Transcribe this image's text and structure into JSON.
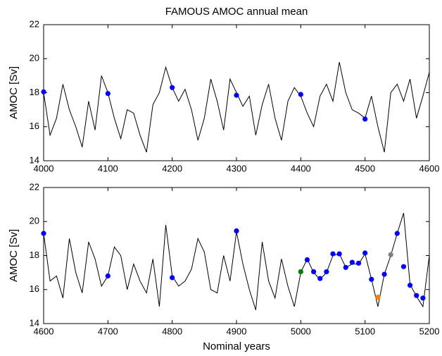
{
  "chart_data": [
    {
      "type": "line",
      "title": "FAMOUS AMOC annual mean",
      "ylabel": "AMOC [Sv]",
      "x": [
        4000,
        4010,
        4020,
        4030,
        4040,
        4050,
        4060,
        4070,
        4080,
        4090,
        4100,
        4110,
        4120,
        4130,
        4140,
        4150,
        4160,
        4170,
        4180,
        4190,
        4200,
        4210,
        4220,
        4230,
        4240,
        4250,
        4260,
        4270,
        4280,
        4290,
        4300,
        4310,
        4320,
        4330,
        4340,
        4350,
        4360,
        4370,
        4380,
        4390,
        4400,
        4410,
        4420,
        4430,
        4440,
        4450,
        4460,
        4470,
        4480,
        4490,
        4500,
        4510,
        4520,
        4530,
        4540,
        4550,
        4560,
        4570,
        4580,
        4590,
        4600
      ],
      "values": [
        18.0,
        15.5,
        16.5,
        18.5,
        17.0,
        16.0,
        14.8,
        17.5,
        15.8,
        19.0,
        18.0,
        16.5,
        15.3,
        17.0,
        16.8,
        15.5,
        14.5,
        17.3,
        18.0,
        19.5,
        18.3,
        17.5,
        18.2,
        17.0,
        15.2,
        16.5,
        18.8,
        17.5,
        15.8,
        18.8,
        18.0,
        17.2,
        17.8,
        15.5,
        17.3,
        18.5,
        16.5,
        15.2,
        17.5,
        18.3,
        17.8,
        16.8,
        16.0,
        17.8,
        18.5,
        17.5,
        19.8,
        18.0,
        17.0,
        16.8,
        16.5,
        17.8,
        16.0,
        14.5,
        18.0,
        18.5,
        17.5,
        18.8,
        16.5,
        17.8,
        19.2
      ],
      "color": "#000000",
      "points": {
        "x": [
          4000,
          4100,
          4200,
          4300,
          4400,
          4500
        ],
        "values": [
          18.05,
          17.95,
          18.3,
          17.85,
          17.9,
          16.45
        ],
        "colors": [
          "#0000ff",
          "#0000ff",
          "#0000ff",
          "#0000ff",
          "#0000ff",
          "#0000ff"
        ]
      },
      "xlim": [
        4000,
        4600
      ],
      "xticks": [
        4000,
        4100,
        4200,
        4300,
        4400,
        4500,
        4600
      ],
      "ylim": [
        14,
        22
      ],
      "yticks": [
        14,
        16,
        18,
        20,
        22
      ]
    },
    {
      "type": "line",
      "ylabel": "AMOC [Sv]",
      "xlabel": "Nominal years",
      "x": [
        4600,
        4610,
        4620,
        4630,
        4640,
        4650,
        4660,
        4670,
        4680,
        4690,
        4700,
        4710,
        4720,
        4730,
        4740,
        4750,
        4760,
        4770,
        4780,
        4790,
        4800,
        4810,
        4820,
        4830,
        4840,
        4850,
        4860,
        4870,
        4880,
        4890,
        4900,
        4910,
        4920,
        4930,
        4940,
        4950,
        4960,
        4970,
        4980,
        4990,
        5000,
        5010,
        5020,
        5030,
        5040,
        5050,
        5060,
        5070,
        5080,
        5090,
        5100,
        5110,
        5120,
        5130,
        5140,
        5150,
        5160,
        5170,
        5180,
        5190,
        5200
      ],
      "values": [
        19.3,
        16.5,
        16.8,
        15.5,
        19.0,
        17.0,
        15.8,
        18.8,
        17.8,
        16.2,
        16.8,
        18.5,
        18.0,
        16.0,
        17.5,
        16.5,
        15.8,
        17.8,
        15.0,
        19.8,
        16.8,
        16.2,
        16.5,
        17.2,
        19.0,
        18.2,
        16.0,
        15.8,
        18.0,
        16.5,
        19.4,
        17.5,
        16.0,
        14.8,
        18.8,
        16.5,
        15.5,
        17.8,
        16.2,
        15.0,
        17.0,
        17.8,
        17.0,
        16.6,
        17.0,
        18.0,
        18.1,
        17.3,
        17.5,
        17.5,
        18.1,
        16.6,
        15.0,
        16.9,
        18.0,
        19.3,
        20.5,
        16.3,
        15.6,
        15.0,
        18.0
      ],
      "color": "#000000",
      "points": {
        "x": [
          4600,
          4700,
          4800,
          4900,
          5000,
          5010,
          5020,
          5030,
          5040,
          5050,
          5060,
          5070,
          5080,
          5090,
          5100,
          5110,
          5120,
          5130,
          5140,
          5150,
          5160,
          5170,
          5180,
          5190
        ],
        "values": [
          19.3,
          16.8,
          16.7,
          19.45,
          17.05,
          17.75,
          17.05,
          16.65,
          17.05,
          18.1,
          18.1,
          17.3,
          17.6,
          17.55,
          18.15,
          16.6,
          15.55,
          16.9,
          18.05,
          19.3,
          17.35,
          16.25,
          15.65,
          15.5
        ],
        "colors": [
          "#0000ff",
          "#0000ff",
          "#0000ff",
          "#0000ff",
          "#008000",
          "#0000ff",
          "#0000ff",
          "#0000ff",
          "#0000ff",
          "#0000ff",
          "#0000ff",
          "#0000ff",
          "#0000ff",
          "#0000ff",
          "#0000ff",
          "#0000ff",
          "#ff8000",
          "#0000ff",
          "#808080",
          "#0000ff",
          "#0000ff",
          "#0000ff",
          "#0000ff",
          "#0000ff"
        ]
      },
      "xlim": [
        4600,
        5200
      ],
      "xticks": [
        4600,
        4700,
        4800,
        4900,
        5000,
        5100,
        5200
      ],
      "ylim": [
        14,
        22
      ],
      "yticks": [
        14,
        16,
        18,
        20,
        22
      ]
    }
  ]
}
